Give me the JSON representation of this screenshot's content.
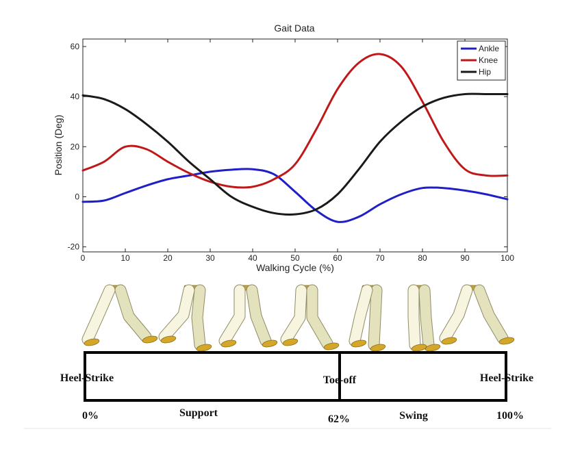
{
  "chart_data": {
    "type": "line",
    "title": "Gait Data",
    "xlabel": "Walking Cycle (%)",
    "ylabel": "Position (Deg)",
    "xlim": [
      0,
      100
    ],
    "ylim": [
      -22,
      63
    ],
    "xticks": [
      0,
      10,
      20,
      30,
      40,
      50,
      60,
      70,
      80,
      90,
      100
    ],
    "yticks": [
      -20,
      0,
      20,
      40,
      60
    ],
    "grid": false,
    "legend_position": "top-right",
    "x": [
      0,
      5,
      10,
      15,
      20,
      25,
      30,
      35,
      40,
      45,
      50,
      55,
      60,
      65,
      70,
      75,
      80,
      85,
      90,
      95,
      100
    ],
    "series": [
      {
        "name": "Ankle",
        "color": "#1f1fc8",
        "values": [
          -2,
          -1.5,
          1.5,
          4.5,
          7,
          8.5,
          10,
          10.8,
          11,
          9,
          2,
          -5.5,
          -10,
          -8,
          -3,
          1,
          3.5,
          3.5,
          2.5,
          1,
          -1
        ]
      },
      {
        "name": "Knee",
        "color": "#c01818",
        "values": [
          10.5,
          14,
          20,
          19,
          14,
          9.5,
          6,
          4,
          4,
          7,
          13,
          27,
          43,
          53.5,
          57,
          52,
          38,
          22,
          11,
          8.5,
          8.5
        ]
      },
      {
        "name": "Hip",
        "color": "#1a1a1a",
        "values": [
          40.5,
          39,
          35,
          29,
          22,
          14,
          7,
          0,
          -4,
          -6.5,
          -7,
          -5,
          1,
          11,
          22,
          30,
          36,
          39.5,
          41,
          41,
          41
        ]
      }
    ]
  },
  "phases": {
    "markers": [
      {
        "event": "Heel-Strike",
        "percent": "0%"
      },
      {
        "event": "Toe-off",
        "percent": "62%"
      },
      {
        "event": "Heel-Strike",
        "percent": "100%"
      }
    ],
    "segments": [
      "Support",
      "Swing"
    ]
  }
}
